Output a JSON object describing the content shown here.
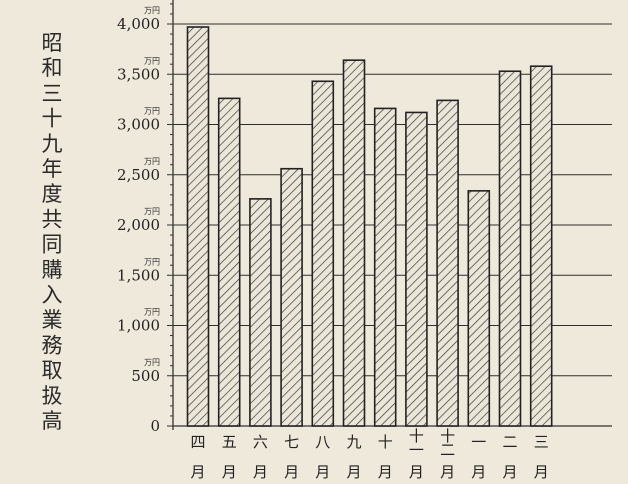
{
  "chart_data": {
    "type": "bar",
    "title": "昭和三十九年度共同購入業務取扱高",
    "unit_label": "万円",
    "categories": [
      "四月",
      "五月",
      "六月",
      "七月",
      "八月",
      "九月",
      "十月",
      "十一月",
      "十二月",
      "一月",
      "二月",
      "三月"
    ],
    "category_top": [
      "四",
      "五",
      "六",
      "七",
      "八",
      "九",
      "十",
      "十一",
      "十二",
      "一",
      "二",
      "三"
    ],
    "category_bottom": "月",
    "values": [
      3970,
      3260,
      2260,
      2560,
      3430,
      3640,
      3160,
      3120,
      3240,
      2340,
      3530,
      3580
    ],
    "ylim": [
      0,
      4200
    ],
    "yticks": [
      0,
      500,
      1000,
      1500,
      2000,
      2500,
      3000,
      3500,
      4000
    ],
    "ytick_labels": [
      "0",
      "500",
      "1,000",
      "1,500",
      "2,000",
      "2,500",
      "3,000",
      "3,500",
      "4,000"
    ],
    "grid": true,
    "bar_fill": "hatched"
  }
}
